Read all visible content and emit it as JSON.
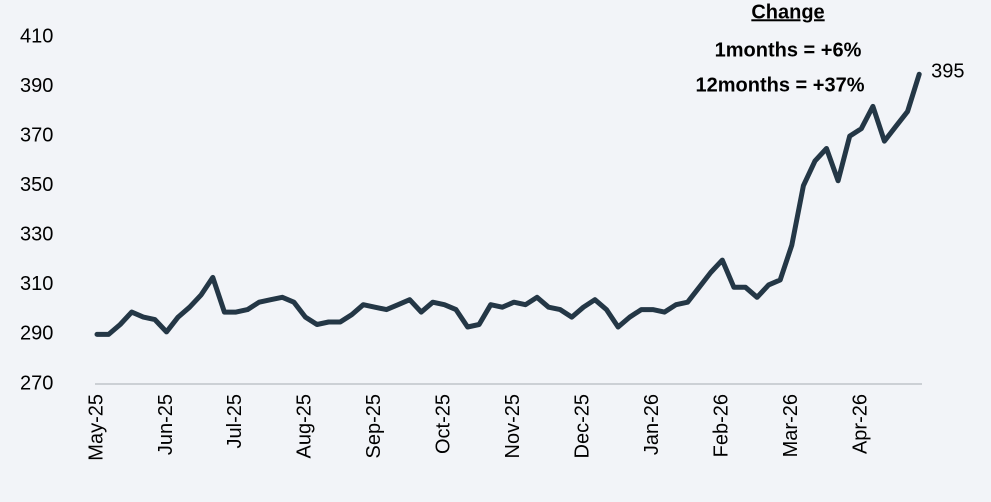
{
  "chart_data": {
    "type": "line",
    "annotations": [
      "Change",
      "1months = +6%",
      "12months = +37%"
    ],
    "categories": [
      "May-25",
      null,
      null,
      null,
      null,
      null,
      "Jun-25",
      null,
      null,
      null,
      null,
      null,
      "Jul-25",
      null,
      null,
      null,
      null,
      null,
      "Aug-25",
      null,
      null,
      null,
      null,
      null,
      "Sep-25",
      null,
      null,
      null,
      null,
      null,
      "Oct-25",
      null,
      null,
      null,
      null,
      null,
      "Nov-25",
      null,
      null,
      null,
      null,
      null,
      "Dec-25",
      null,
      null,
      null,
      null,
      null,
      "Jan-26",
      null,
      null,
      null,
      null,
      null,
      "Feb-26",
      null,
      null,
      null,
      null,
      null,
      "Mar-26",
      null,
      null,
      null,
      null,
      null,
      "Apr-26",
      null,
      null,
      null,
      null,
      null
    ],
    "values": [
      290,
      290,
      294,
      299,
      297,
      296,
      291,
      297,
      301,
      306,
      313,
      299,
      299,
      300,
      303,
      304,
      305,
      303,
      297,
      294,
      295,
      295,
      298,
      302,
      301,
      300,
      302,
      304,
      299,
      303,
      302,
      300,
      293,
      294,
      302,
      301,
      303,
      302,
      305,
      301,
      300,
      297,
      301,
      304,
      300,
      293,
      297,
      300,
      300,
      299,
      302,
      303,
      309,
      315,
      320,
      309,
      309,
      305,
      310,
      312,
      326,
      350,
      360,
      365,
      352,
      370,
      373,
      382,
      368,
      374,
      380,
      395
    ],
    "color": "#243746",
    "ylim": [
      270,
      410
    ],
    "yticks": [
      270,
      290,
      310,
      330,
      350,
      370,
      390,
      410
    ],
    "grid": false
  }
}
